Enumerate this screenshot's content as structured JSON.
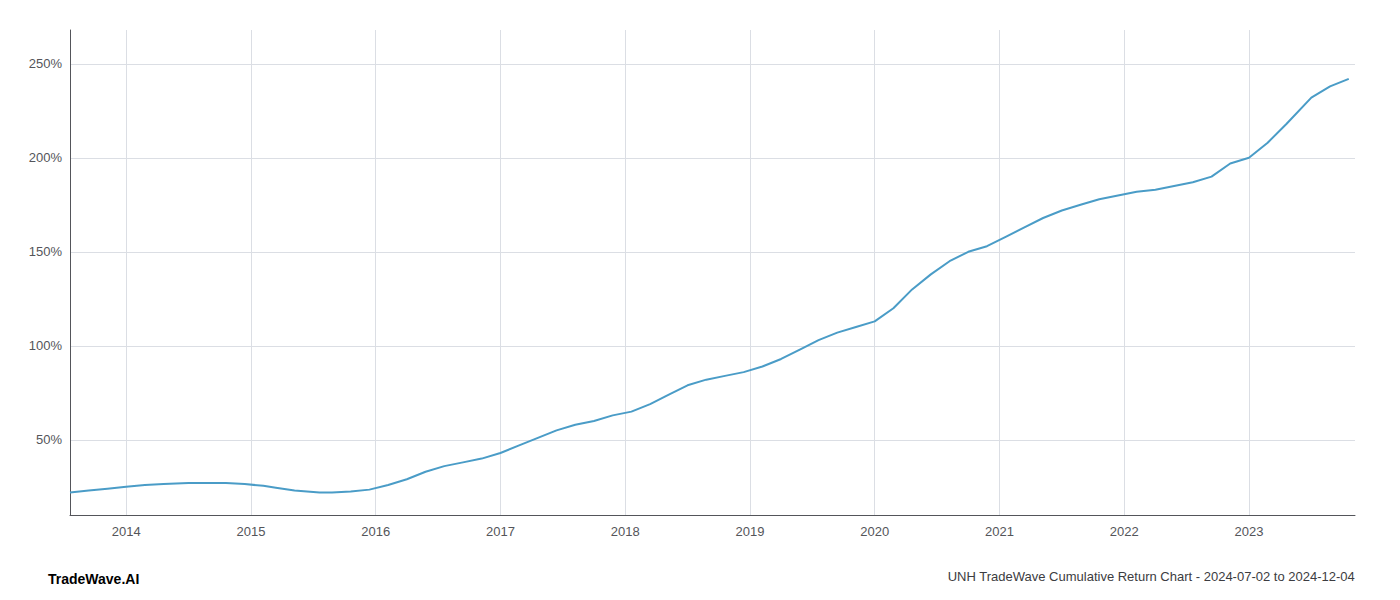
{
  "chart_data": {
    "type": "line",
    "title": "UNH TradeWave Cumulative Return Chart - 2024-07-02 to 2024-12-04",
    "annotations": [
      "TradeWave.AI"
    ],
    "color": "#4a9cc7",
    "grid": true,
    "x": [
      2013.55,
      2013.7,
      2013.85,
      2014.0,
      2014.15,
      2014.3,
      2014.5,
      2014.65,
      2014.8,
      2014.95,
      2015.1,
      2015.2,
      2015.35,
      2015.45,
      2015.55,
      2015.65,
      2015.8,
      2015.95,
      2016.1,
      2016.25,
      2016.4,
      2016.55,
      2016.7,
      2016.85,
      2017.0,
      2017.15,
      2017.3,
      2017.45,
      2017.6,
      2017.75,
      2017.9,
      2018.05,
      2018.2,
      2018.35,
      2018.5,
      2018.65,
      2018.8,
      2018.95,
      2019.1,
      2019.25,
      2019.4,
      2019.55,
      2019.7,
      2019.85,
      2020.0,
      2020.15,
      2020.3,
      2020.45,
      2020.6,
      2020.75,
      2020.9,
      2021.05,
      2021.2,
      2021.35,
      2021.5,
      2021.65,
      2021.8,
      2021.95,
      2022.1,
      2022.25,
      2022.4,
      2022.55,
      2022.7,
      2022.85,
      2023.0,
      2023.15,
      2023.3,
      2023.5,
      2023.65,
      2023.8
    ],
    "values": [
      22,
      23,
      24,
      25,
      26,
      26.5,
      27,
      27,
      27,
      26.5,
      25.5,
      24.5,
      23,
      22.5,
      22,
      22,
      22.5,
      23.5,
      26,
      29,
      33,
      36,
      38,
      40,
      43,
      47,
      51,
      55,
      58,
      60,
      63,
      65,
      69,
      74,
      79,
      82,
      84,
      86,
      89,
      93,
      98,
      103,
      107,
      110,
      113,
      120,
      130,
      138,
      145,
      150,
      153,
      158,
      163,
      168,
      172,
      175,
      178,
      180,
      182,
      183,
      185,
      187,
      190,
      197,
      200,
      208,
      218,
      232,
      238,
      242
    ],
    "xlim": [
      2013.55,
      2023.85
    ],
    "xticks": [
      2014,
      2015,
      2016,
      2017,
      2018,
      2019,
      2020,
      2021,
      2022,
      2023
    ],
    "ylim": [
      10,
      268
    ],
    "yticks": [
      {
        "value": 50,
        "label": "50%"
      },
      {
        "value": 100,
        "label": "100%"
      },
      {
        "value": 150,
        "label": "150%"
      },
      {
        "value": 200,
        "label": "200%"
      },
      {
        "value": 250,
        "label": "250%"
      }
    ]
  }
}
